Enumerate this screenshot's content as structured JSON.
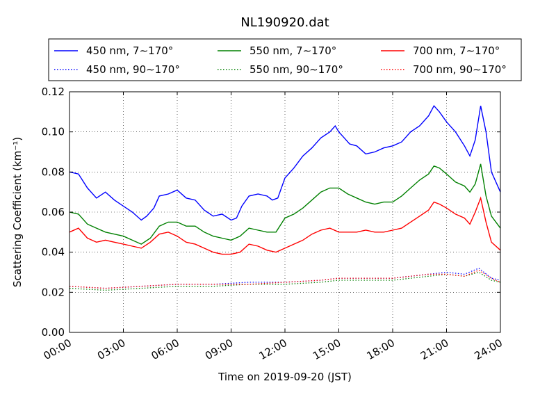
{
  "chart_data": {
    "type": "line",
    "title": "NL190920.dat",
    "xlabel": "Time on 2019-09-20 (JST)",
    "ylabel": "Scattering Coefficient (km⁻¹)",
    "x_unit": "hours",
    "xlim": [
      0,
      24
    ],
    "ylim": [
      0,
      0.12
    ],
    "x_ticks": [
      0,
      3,
      6,
      9,
      12,
      15,
      18,
      21,
      24
    ],
    "x_tick_labels": [
      "00:00",
      "03:00",
      "06:00",
      "09:00",
      "12:00",
      "15:00",
      "18:00",
      "21:00",
      "24:00"
    ],
    "y_ticks": [
      0.0,
      0.02,
      0.04,
      0.06,
      0.08,
      0.1,
      0.12
    ],
    "y_tick_labels": [
      "0.00",
      "0.02",
      "0.04",
      "0.06",
      "0.08",
      "0.10",
      "0.12"
    ],
    "grid": true,
    "legend_position": "top, above plot",
    "series": [
      {
        "name": "450 nm, 7∼170°",
        "color": "#0000ff",
        "dash": "solid",
        "x": [
          0,
          0.5,
          1,
          1.5,
          2,
          2.5,
          3,
          3.5,
          4,
          4.3,
          4.7,
          5,
          5.5,
          6,
          6.5,
          7,
          7.5,
          8,
          8.5,
          9,
          9.3,
          9.6,
          10,
          10.5,
          11,
          11.3,
          11.6,
          12,
          12.5,
          13,
          13.5,
          14,
          14.5,
          14.8,
          15,
          15.3,
          15.6,
          16,
          16.5,
          17,
          17.5,
          18,
          18.5,
          19,
          19.5,
          20,
          20.3,
          20.6,
          21,
          21.5,
          22,
          22.3,
          22.6,
          22.9,
          23.2,
          23.5,
          24
        ],
        "values": [
          0.08,
          0.079,
          0.072,
          0.067,
          0.07,
          0.066,
          0.063,
          0.06,
          0.056,
          0.058,
          0.062,
          0.068,
          0.069,
          0.071,
          0.067,
          0.066,
          0.061,
          0.058,
          0.059,
          0.056,
          0.057,
          0.063,
          0.068,
          0.069,
          0.068,
          0.066,
          0.067,
          0.077,
          0.082,
          0.088,
          0.092,
          0.097,
          0.1,
          0.103,
          0.1,
          0.097,
          0.094,
          0.093,
          0.089,
          0.09,
          0.092,
          0.093,
          0.095,
          0.1,
          0.103,
          0.108,
          0.113,
          0.11,
          0.105,
          0.1,
          0.093,
          0.088,
          0.096,
          0.113,
          0.1,
          0.08,
          0.07
        ]
      },
      {
        "name": "550 nm, 7∼170°",
        "color": "#008000",
        "dash": "solid",
        "x": [
          0,
          0.5,
          1,
          1.5,
          2,
          2.5,
          3,
          3.5,
          4,
          4.5,
          5,
          5.5,
          6,
          6.5,
          7,
          7.5,
          8,
          8.5,
          9,
          9.5,
          10,
          10.5,
          11,
          11.5,
          12,
          12.5,
          13,
          13.5,
          14,
          14.5,
          15,
          15.5,
          16,
          16.5,
          17,
          17.5,
          18,
          18.5,
          19,
          19.5,
          20,
          20.3,
          20.6,
          21,
          21.5,
          22,
          22.3,
          22.6,
          22.9,
          23.2,
          23.5,
          24
        ],
        "values": [
          0.06,
          0.059,
          0.054,
          0.052,
          0.05,
          0.049,
          0.048,
          0.046,
          0.044,
          0.047,
          0.053,
          0.055,
          0.055,
          0.053,
          0.053,
          0.05,
          0.048,
          0.047,
          0.046,
          0.048,
          0.052,
          0.051,
          0.05,
          0.05,
          0.057,
          0.059,
          0.062,
          0.066,
          0.07,
          0.072,
          0.072,
          0.069,
          0.067,
          0.065,
          0.064,
          0.065,
          0.065,
          0.068,
          0.072,
          0.076,
          0.079,
          0.083,
          0.082,
          0.079,
          0.075,
          0.073,
          0.07,
          0.074,
          0.084,
          0.068,
          0.058,
          0.052
        ]
      },
      {
        "name": "700 nm, 7∼170°",
        "color": "#ff0000",
        "dash": "solid",
        "x": [
          0,
          0.5,
          1,
          1.5,
          2,
          2.5,
          3,
          3.5,
          4,
          4.5,
          5,
          5.5,
          6,
          6.5,
          7,
          7.5,
          8,
          8.5,
          9,
          9.5,
          10,
          10.5,
          11,
          11.5,
          12,
          12.5,
          13,
          13.5,
          14,
          14.5,
          15,
          15.5,
          16,
          16.5,
          17,
          17.5,
          18,
          18.5,
          19,
          19.5,
          20,
          20.3,
          20.6,
          21,
          21.5,
          22,
          22.3,
          22.6,
          22.9,
          23.2,
          23.5,
          24
        ],
        "values": [
          0.05,
          0.052,
          0.047,
          0.045,
          0.046,
          0.045,
          0.044,
          0.043,
          0.042,
          0.045,
          0.049,
          0.05,
          0.048,
          0.045,
          0.044,
          0.042,
          0.04,
          0.039,
          0.039,
          0.04,
          0.044,
          0.043,
          0.041,
          0.04,
          0.042,
          0.044,
          0.046,
          0.049,
          0.051,
          0.052,
          0.05,
          0.05,
          0.05,
          0.051,
          0.05,
          0.05,
          0.051,
          0.052,
          0.055,
          0.058,
          0.061,
          0.065,
          0.064,
          0.062,
          0.059,
          0.057,
          0.054,
          0.06,
          0.067,
          0.055,
          0.045,
          0.041
        ]
      },
      {
        "name": "450 nm, 90∼170°",
        "color": "#0000ff",
        "dash": "dotted",
        "x": [
          0,
          2,
          4,
          6,
          8,
          10,
          12,
          14,
          15,
          16,
          18,
          20,
          21,
          22,
          22.8,
          23.5,
          24
        ],
        "values": [
          0.023,
          0.022,
          0.023,
          0.024,
          0.024,
          0.025,
          0.025,
          0.026,
          0.027,
          0.027,
          0.027,
          0.029,
          0.03,
          0.029,
          0.032,
          0.027,
          0.026
        ]
      },
      {
        "name": "550 nm, 90∼170°",
        "color": "#008000",
        "dash": "dotted",
        "x": [
          0,
          2,
          4,
          6,
          8,
          10,
          12,
          14,
          15,
          16,
          18,
          20,
          21,
          22,
          22.8,
          23.5,
          24
        ],
        "values": [
          0.022,
          0.021,
          0.022,
          0.023,
          0.023,
          0.024,
          0.024,
          0.025,
          0.026,
          0.026,
          0.026,
          0.028,
          0.029,
          0.028,
          0.03,
          0.026,
          0.025
        ]
      },
      {
        "name": "700 nm, 90∼170°",
        "color": "#ff0000",
        "dash": "dotted",
        "x": [
          0,
          2,
          4,
          6,
          8,
          10,
          12,
          14,
          15,
          16,
          18,
          20,
          21,
          22,
          22.8,
          23.5,
          24
        ],
        "values": [
          0.023,
          0.022,
          0.023,
          0.024,
          0.024,
          0.024,
          0.025,
          0.026,
          0.027,
          0.027,
          0.027,
          0.029,
          0.029,
          0.028,
          0.031,
          0.027,
          0.025
        ]
      }
    ]
  }
}
